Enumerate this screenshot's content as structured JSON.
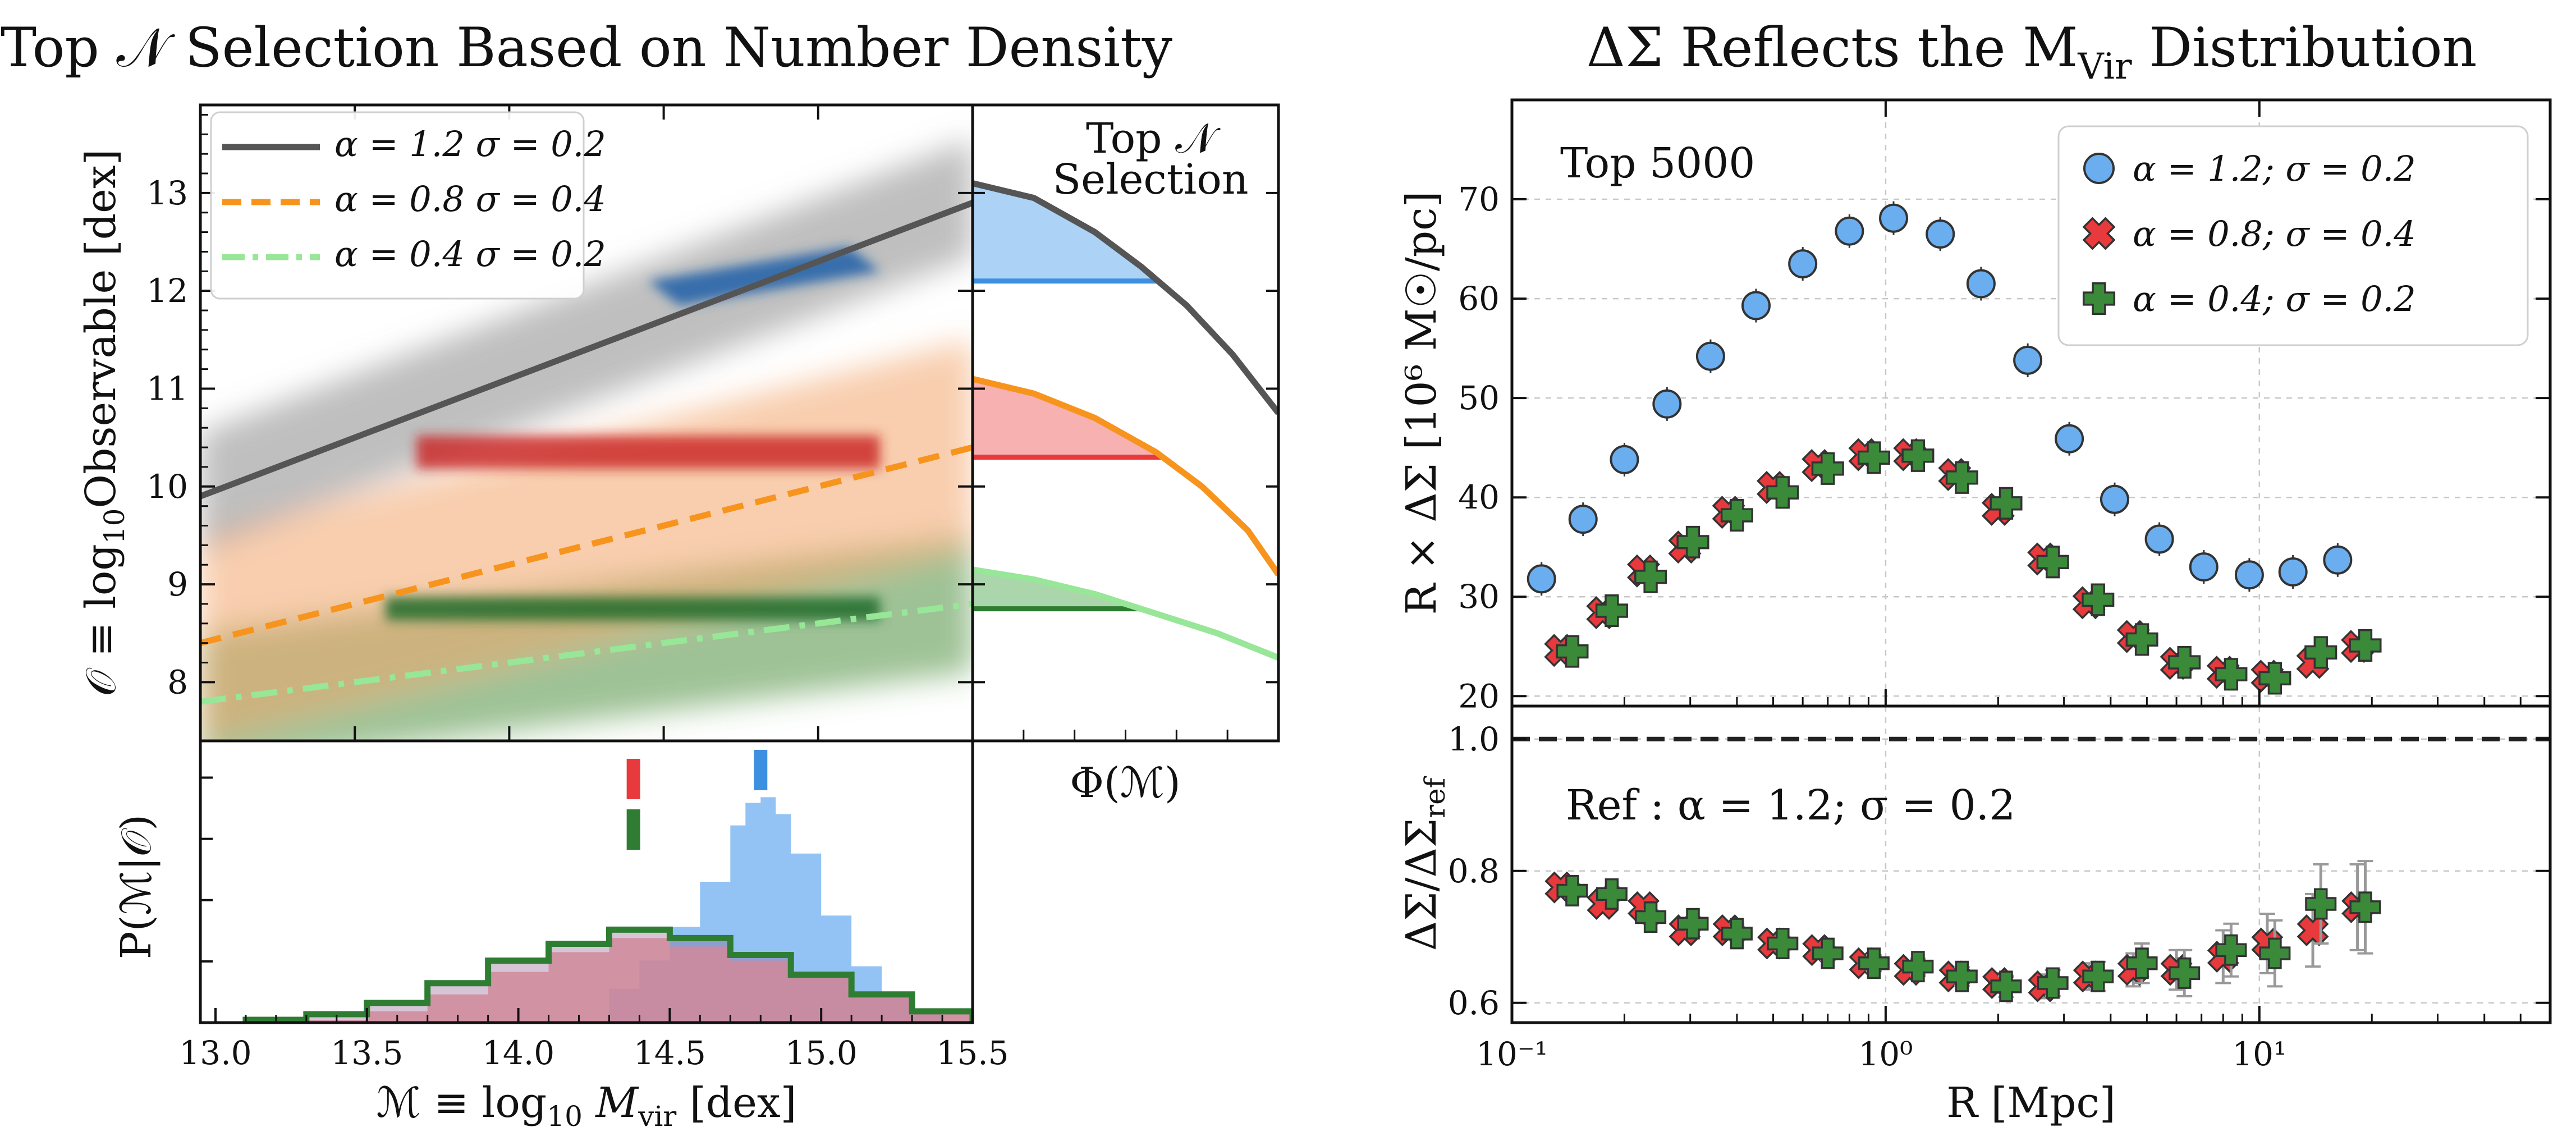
{
  "left_title": "Top 𝒩 Selection Based on Number Density",
  "right_title": "ΔΣ Reflects the M_Vir Distribution",
  "right_title_main": "ΔΣ Reflects the M",
  "right_title_sub": "Vir",
  "right_title_tail": " Distribution",
  "colors": {
    "blue": "#3d8fe0",
    "blue_light": "#9ecbf5",
    "red": "#e8393c",
    "red_light": "#f7a3a3",
    "orange": "#f7941d",
    "green_dark": "#2e7d32",
    "green_light": "#98e698",
    "gray": "#555555"
  },
  "chart_data": [
    {
      "id": "hexbin-main",
      "type": "scatter",
      "title": "",
      "xlabel": "",
      "ylabel": "𝒪 ≡ log₁₀Observable [dex]",
      "ylabel_main": "𝒪 ≡ log",
      "ylabel_sub": "10",
      "ylabel_tail": "Observable [dex]",
      "xlim": [
        13.0,
        15.5
      ],
      "ylim": [
        7.4,
        13.9
      ],
      "yticks": [
        "8",
        "9",
        "10",
        "11",
        "12",
        "13"
      ],
      "yticks_values": [
        8,
        9,
        10,
        11,
        12,
        13
      ],
      "legend": {
        "placement": "top-left",
        "entries": [
          {
            "label": "α = 1.2 σ = 0.2",
            "style": "solid",
            "color": "#555555"
          },
          {
            "label": "α = 0.8 σ = 0.4",
            "style": "dashed",
            "color": "#f7941d"
          },
          {
            "label": "α = 0.4 σ = 0.2",
            "style": "dashdot",
            "color": "#98e698"
          }
        ]
      },
      "series": [
        {
          "name": "α = 1.2 σ = 0.2",
          "line": {
            "x": [
              13.0,
              15.5
            ],
            "y": [
              9.9,
              12.9
            ]
          },
          "threshold": 12.1
        },
        {
          "name": "α = 0.8 σ = 0.4",
          "line": {
            "x": [
              13.0,
              15.5
            ],
            "y": [
              8.4,
              10.4
            ]
          },
          "threshold": 10.3
        },
        {
          "name": "α = 0.4 σ = 0.2",
          "line": {
            "x": [
              13.0,
              15.5
            ],
            "y": [
              7.8,
              8.8
            ]
          },
          "threshold": 8.8
        }
      ]
    },
    {
      "id": "number-density",
      "type": "line",
      "title": "Top 𝒩 Selection",
      "title_lines": [
        "Top 𝒩",
        "Selection"
      ],
      "xlabel": "Φ(ℳ)",
      "ylim": [
        7.4,
        13.9
      ],
      "series": [
        {
          "name": "α = 1.2 σ = 0.2",
          "x": [
            0.0,
            0.2,
            0.4,
            0.55,
            0.7,
            0.85,
            1.0
          ],
          "y": [
            13.1,
            12.95,
            12.6,
            12.25,
            11.85,
            11.35,
            10.75
          ],
          "threshold": 12.1,
          "fill": "#9ecbf5",
          "cut": "#3d8fe0"
        },
        {
          "name": "α = 0.8 σ = 0.4",
          "x": [
            0.0,
            0.2,
            0.4,
            0.6,
            0.75,
            0.9,
            1.0
          ],
          "y": [
            11.1,
            10.95,
            10.7,
            10.35,
            10.0,
            9.55,
            9.1
          ],
          "threshold": 10.3,
          "fill": "#f7a3a3",
          "cut": "#e8393c"
        },
        {
          "name": "α = 0.4 σ = 0.2",
          "x": [
            0.0,
            0.2,
            0.4,
            0.6,
            0.8,
            1.0
          ],
          "y": [
            9.15,
            9.05,
            8.9,
            8.7,
            8.5,
            8.25
          ],
          "threshold": 8.75,
          "fill": "#9ccf9c",
          "cut": "#2e7d32"
        }
      ]
    },
    {
      "id": "mass-pdf",
      "type": "bar",
      "title": "",
      "xlabel": "ℳ ≡ log₁₀M_vir [dex]",
      "xlabel_main": "ℳ ≡ log",
      "xlabel_sub": "10",
      "xlabel_m": " M",
      "xlabel_msub": "vir",
      "xlabel_tail": " [dex]",
      "ylabel": "P(ℳ|𝒪)",
      "xlim": [
        12.95,
        15.5
      ],
      "ylim": [
        0,
        1.0
      ],
      "xticks": [
        "13.0",
        "13.5",
        "14.0",
        "14.5",
        "15.0",
        "15.5"
      ],
      "xticks_values": [
        13.0,
        13.5,
        14.0,
        14.5,
        15.0,
        15.5
      ],
      "series": [
        {
          "name": "α = 1.2 σ = 0.2",
          "median": 14.8,
          "x": [
            14.2,
            14.3,
            14.4,
            14.5,
            14.6,
            14.7,
            14.75,
            14.8,
            14.85,
            14.9,
            15.0,
            15.1,
            15.2,
            15.3,
            15.4
          ],
          "y": [
            0.0,
            0.12,
            0.22,
            0.34,
            0.5,
            0.7,
            0.78,
            0.8,
            0.74,
            0.6,
            0.38,
            0.2,
            0.1,
            0.04,
            0.01
          ]
        },
        {
          "name": "α = 0.8 σ = 0.4",
          "median": 14.38,
          "x": [
            13.3,
            13.5,
            13.7,
            13.9,
            14.1,
            14.3,
            14.4,
            14.5,
            14.7,
            14.9,
            15.1,
            15.3,
            15.5
          ],
          "y": [
            0.01,
            0.04,
            0.1,
            0.18,
            0.25,
            0.3,
            0.3,
            0.27,
            0.22,
            0.16,
            0.1,
            0.04,
            0.01
          ]
        },
        {
          "name": "α = 0.4 σ = 0.2",
          "median": 14.38,
          "x": [
            13.1,
            13.3,
            13.5,
            13.7,
            13.9,
            14.1,
            14.3,
            14.4,
            14.5,
            14.7,
            14.9,
            15.1,
            15.3,
            15.5
          ],
          "y": [
            0.01,
            0.03,
            0.07,
            0.14,
            0.22,
            0.28,
            0.33,
            0.33,
            0.3,
            0.24,
            0.17,
            0.1,
            0.04,
            0.01
          ]
        }
      ]
    },
    {
      "id": "delta-sigma",
      "type": "scatter",
      "title": "",
      "annotation": "Top 5000",
      "xlabel": "",
      "ylabel": "R × ΔΣ [10⁶ M☉/pc]",
      "xscale": "log",
      "xlim": [
        0.1,
        60
      ],
      "ylim": [
        19,
        80
      ],
      "yticks": [
        "20",
        "30",
        "40",
        "50",
        "60",
        "70"
      ],
      "yticks_values": [
        20,
        30,
        40,
        50,
        60,
        70
      ],
      "legend": {
        "placement": "top-right",
        "entries": [
          {
            "label": "α = 1.2; σ = 0.2",
            "marker": "circle",
            "color": "#6aaef0"
          },
          {
            "label": "α = 0.8; σ = 0.4",
            "marker": "x",
            "color": "#e8393c"
          },
          {
            "label": "α = 0.4; σ = 0.2",
            "marker": "plus",
            "color": "#3a8a3a"
          }
        ]
      },
      "series": [
        {
          "name": "α = 1.2; σ = 0.2",
          "x": [
            0.12,
            0.155,
            0.2,
            0.26,
            0.34,
            0.45,
            0.6,
            0.8,
            1.05,
            1.4,
            1.8,
            2.4,
            3.1,
            4.1,
            5.4,
            7.1,
            9.4,
            12.3,
            16.2
          ],
          "y": [
            31.8,
            37.8,
            43.8,
            49.4,
            54.2,
            59.3,
            63.5,
            66.8,
            68.1,
            66.5,
            61.5,
            53.8,
            45.9,
            39.8,
            35.8,
            33.0,
            32.2,
            32.5,
            33.7
          ]
        },
        {
          "name": "α = 0.8; σ = 0.4",
          "x": [
            0.135,
            0.175,
            0.225,
            0.29,
            0.38,
            0.5,
            0.66,
            0.88,
            1.16,
            1.53,
            2.0,
            2.65,
            3.5,
            4.6,
            6.0,
            8.0,
            10.5,
            13.9,
            18.3
          ],
          "y": [
            24.6,
            28.4,
            32.6,
            35.0,
            38.5,
            41.0,
            43.2,
            44.3,
            44.3,
            42.3,
            38.8,
            33.8,
            29.4,
            26.0,
            23.3,
            22.4,
            22.0,
            23.4,
            25.0
          ]
        },
        {
          "name": "α = 0.4; σ = 0.2",
          "x": [
            0.145,
            0.185,
            0.235,
            0.305,
            0.4,
            0.53,
            0.7,
            0.93,
            1.22,
            1.6,
            2.1,
            2.8,
            3.7,
            4.85,
            6.3,
            8.4,
            11.0,
            14.6,
            19.2
          ],
          "y": [
            24.5,
            28.6,
            32.0,
            35.5,
            38.2,
            40.5,
            42.9,
            44.0,
            44.2,
            42.0,
            39.4,
            33.5,
            29.7,
            25.7,
            23.4,
            22.2,
            21.8,
            24.4,
            25.1
          ]
        }
      ]
    },
    {
      "id": "ratio",
      "type": "scatter",
      "title": "",
      "annotation": "Ref : α = 1.2; σ = 0.2",
      "xlabel": "R [Mpc]",
      "ylabel": "ΔΣ/ΔΣ_ref",
      "ylabel_main": "ΔΣ/ΔΣ",
      "ylabel_sub": "ref",
      "xscale": "log",
      "xlim": [
        0.1,
        60
      ],
      "ylim": [
        0.57,
        1.05
      ],
      "yticks": [
        "0.6",
        "0.8",
        "1.0"
      ],
      "yticks_values": [
        0.6,
        0.8,
        1.0
      ],
      "xticks": [
        "10⁻¹",
        "10⁰",
        "10¹"
      ],
      "xticks_values": [
        0.1,
        1,
        10
      ],
      "reference_line": 1.0,
      "series": [
        {
          "name": "α = 0.8; σ = 0.4",
          "x": [
            0.135,
            0.175,
            0.225,
            0.29,
            0.38,
            0.5,
            0.66,
            0.88,
            1.16,
            1.53,
            2.0,
            2.65,
            3.5,
            4.6,
            6.0,
            8.0,
            10.5,
            13.9,
            18.3
          ],
          "y": [
            0.775,
            0.75,
            0.745,
            0.71,
            0.71,
            0.69,
            0.68,
            0.66,
            0.65,
            0.64,
            0.63,
            0.625,
            0.64,
            0.65,
            0.65,
            0.67,
            0.69,
            0.71,
            0.745
          ],
          "err": [
            0.01,
            0.01,
            0.01,
            0.01,
            0.01,
            0.01,
            0.01,
            0.01,
            0.012,
            0.012,
            0.015,
            0.018,
            0.02,
            0.025,
            0.03,
            0.04,
            0.045,
            0.055,
            0.065
          ]
        },
        {
          "name": "α = 0.4; σ = 0.2",
          "x": [
            0.145,
            0.185,
            0.235,
            0.305,
            0.4,
            0.53,
            0.7,
            0.93,
            1.22,
            1.6,
            2.1,
            2.8,
            3.7,
            4.85,
            6.3,
            8.4,
            11.0,
            14.6,
            19.2
          ],
          "y": [
            0.77,
            0.765,
            0.73,
            0.72,
            0.705,
            0.69,
            0.675,
            0.66,
            0.655,
            0.64,
            0.625,
            0.63,
            0.64,
            0.66,
            0.645,
            0.68,
            0.675,
            0.75,
            0.745
          ],
          "err": [
            0.01,
            0.01,
            0.01,
            0.01,
            0.01,
            0.01,
            0.01,
            0.012,
            0.012,
            0.014,
            0.016,
            0.02,
            0.022,
            0.03,
            0.035,
            0.04,
            0.05,
            0.06,
            0.07
          ]
        }
      ]
    }
  ]
}
